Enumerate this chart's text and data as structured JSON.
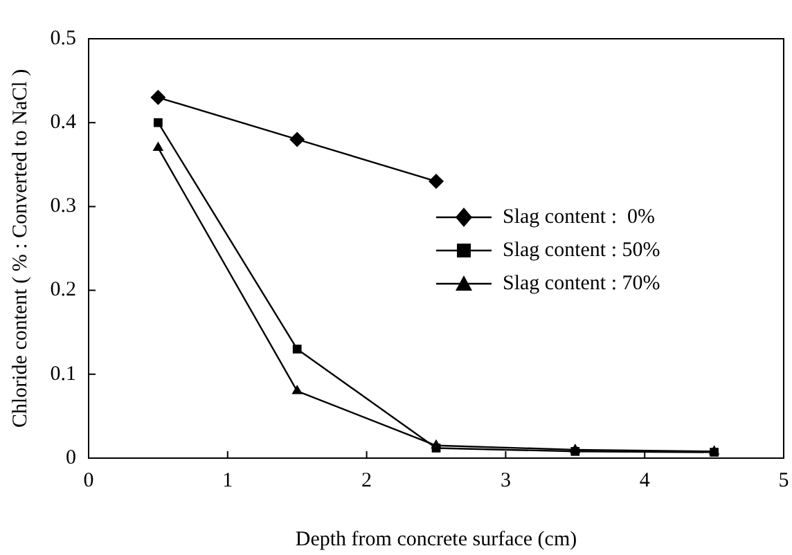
{
  "chart_data": {
    "type": "line",
    "xlabel": "Depth from concrete surface (cm)",
    "ylabel": "Chloride content ( % : Converted to NaCl )",
    "xlim": [
      0,
      5
    ],
    "xticks": [
      0,
      1,
      2,
      3,
      4,
      5
    ],
    "ylim": [
      0,
      0.5
    ],
    "yticks": [
      0,
      0.1,
      0.2,
      0.3,
      0.4,
      0.5
    ],
    "grid": false,
    "legend": "right",
    "line_style": "solid",
    "series": [
      {
        "name": "Slag content :  0%",
        "color": "#000000",
        "marker": "diamond",
        "x": [
          0.5,
          1.5,
          2.5
        ],
        "values": [
          0.43,
          0.38,
          0.33
        ]
      },
      {
        "name": "Slag content : 50%",
        "color": "#000000",
        "marker": "square",
        "x": [
          0.5,
          1.5,
          2.5,
          3.5,
          4.5
        ],
        "values": [
          0.4,
          0.13,
          0.012,
          0.008,
          0.007
        ]
      },
      {
        "name": "Slag content : 70%",
        "color": "#000000",
        "marker": "triangle",
        "x": [
          0.5,
          1.5,
          2.5,
          3.5,
          4.5
        ],
        "values": [
          0.37,
          0.08,
          0.015,
          0.01,
          0.008
        ]
      }
    ]
  }
}
